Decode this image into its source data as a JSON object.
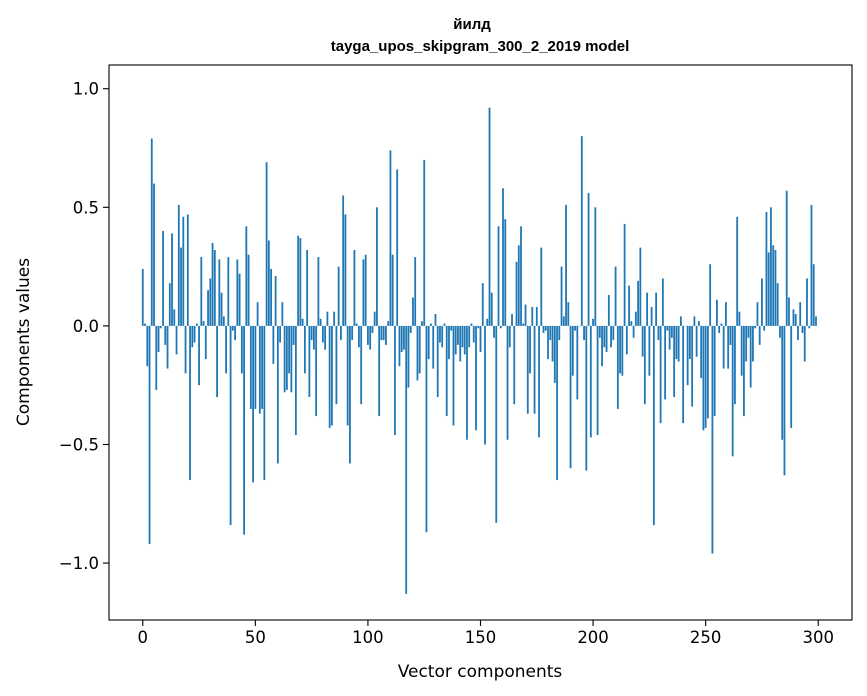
{
  "chart_data": {
    "type": "bar",
    "title_line1": "йилд",
    "title_line2": "tayga_upos_skipgram_300_2_2019 model",
    "xlabel": "Vector components",
    "ylabel": "Components values",
    "xlim": [
      -15,
      315
    ],
    "ylim": [
      -1.24,
      1.1
    ],
    "x_ticks": [
      0,
      50,
      100,
      150,
      200,
      250,
      300
    ],
    "x_tick_labels": [
      "0",
      "50",
      "100",
      "150",
      "200",
      "250",
      "300"
    ],
    "y_ticks": [
      -1.0,
      -0.5,
      0.0,
      0.5,
      1.0
    ],
    "y_tick_labels": [
      "−1.0",
      "−0.5",
      "0.0",
      "0.5",
      "1.0"
    ],
    "bar_color": "#1f77b4",
    "values": [
      0.24,
      0.01,
      -0.17,
      -0.92,
      0.79,
      0.6,
      -0.27,
      -0.11,
      -0.01,
      0.4,
      -0.08,
      -0.18,
      0.18,
      0.39,
      0.07,
      -0.12,
      0.51,
      0.33,
      0.46,
      -0.2,
      0.47,
      -0.65,
      -0.09,
      -0.07,
      0.01,
      -0.25,
      0.29,
      0.02,
      -0.14,
      0.15,
      0.2,
      0.35,
      0.32,
      -0.3,
      0.28,
      0.14,
      0.04,
      -0.2,
      0.29,
      -0.84,
      -0.02,
      -0.06,
      0.28,
      0.22,
      -0.2,
      -0.88,
      0.42,
      0.3,
      -0.35,
      -0.66,
      -0.35,
      0.1,
      -0.37,
      -0.35,
      -0.65,
      0.69,
      0.36,
      0.24,
      -0.16,
      0.21,
      -0.58,
      -0.07,
      0.1,
      -0.28,
      -0.27,
      -0.2,
      -0.28,
      -0.08,
      -0.46,
      0.38,
      0.37,
      0.03,
      -0.2,
      0.32,
      -0.3,
      -0.06,
      -0.1,
      -0.38,
      0.29,
      0.03,
      -0.07,
      -0.1,
      0.06,
      -0.43,
      -0.42,
      0.06,
      -0.33,
      0.25,
      -0.06,
      0.55,
      0.47,
      -0.42,
      -0.58,
      -0.06,
      0.32,
      0.01,
      -0.09,
      -0.33,
      0.28,
      0.3,
      -0.08,
      -0.1,
      -0.03,
      0.06,
      0.5,
      -0.38,
      -0.06,
      -0.06,
      -0.08,
      0.02,
      0.74,
      0.3,
      -0.46,
      0.66,
      -0.17,
      -0.11,
      -0.1,
      -1.13,
      -0.26,
      -0.03,
      0.12,
      0.29,
      -0.23,
      -0.2,
      0.02,
      0.7,
      -0.87,
      -0.14,
      0.01,
      -0.18,
      0.05,
      -0.3,
      -0.07,
      -0.09,
      0.01,
      -0.38,
      -0.14,
      -0.02,
      -0.42,
      -0.12,
      -0.08,
      -0.15,
      -0.09,
      -0.12,
      -0.48,
      -0.09,
      0.01,
      -0.07,
      -0.44,
      -0.01,
      -0.11,
      0.18,
      -0.5,
      0.03,
      0.92,
      0.14,
      -0.05,
      -0.83,
      0.42,
      -0.01,
      0.58,
      0.45,
      -0.48,
      -0.09,
      0.05,
      -0.33,
      0.27,
      0.34,
      0.42,
      0.01,
      0.09,
      -0.37,
      -0.2,
      0.08,
      -0.37,
      0.08,
      -0.47,
      0.33,
      -0.03,
      -0.02,
      -0.14,
      -0.06,
      -0.15,
      -0.24,
      -0.65,
      -0.06,
      0.25,
      0.04,
      0.51,
      0.1,
      -0.6,
      -0.21,
      -0.02,
      -0.31,
      0.0,
      0.8,
      -0.06,
      -0.61,
      0.56,
      -0.47,
      0.03,
      0.5,
      -0.46,
      -0.05,
      -0.17,
      -0.09,
      -0.11,
      0.13,
      -0.09,
      -0.06,
      0.25,
      -0.35,
      -0.2,
      -0.21,
      0.43,
      -0.12,
      0.17,
      0.02,
      -0.05,
      0.06,
      0.19,
      0.33,
      -0.13,
      -0.33,
      0.14,
      -0.21,
      0.08,
      -0.84,
      0.14,
      -0.06,
      -0.41,
      0.2,
      -0.31,
      -0.02,
      -0.1,
      -0.05,
      -0.3,
      -0.14,
      -0.15,
      0.04,
      -0.41,
      0.0,
      -0.25,
      -0.14,
      -0.34,
      0.04,
      -0.13,
      0.02,
      -0.22,
      -0.44,
      -0.43,
      -0.39,
      0.26,
      -0.96,
      -0.38,
      0.11,
      -0.03,
      0.01,
      -0.18,
      0.1,
      -0.18,
      -0.08,
      -0.55,
      -0.33,
      0.46,
      0.06,
      -0.21,
      -0.38,
      -0.15,
      -0.05,
      -0.26,
      -0.15,
      -0.01,
      0.1,
      -0.08,
      0.2,
      -0.02,
      0.48,
      0.31,
      0.5,
      0.34,
      0.32,
      0.18,
      -0.05,
      -0.48,
      -0.63,
      0.57,
      0.12,
      -0.43,
      0.07,
      0.05,
      -0.06,
      0.1,
      -0.03,
      -0.15,
      0.2,
      -0.01,
      0.51,
      0.26,
      0.04
    ]
  }
}
